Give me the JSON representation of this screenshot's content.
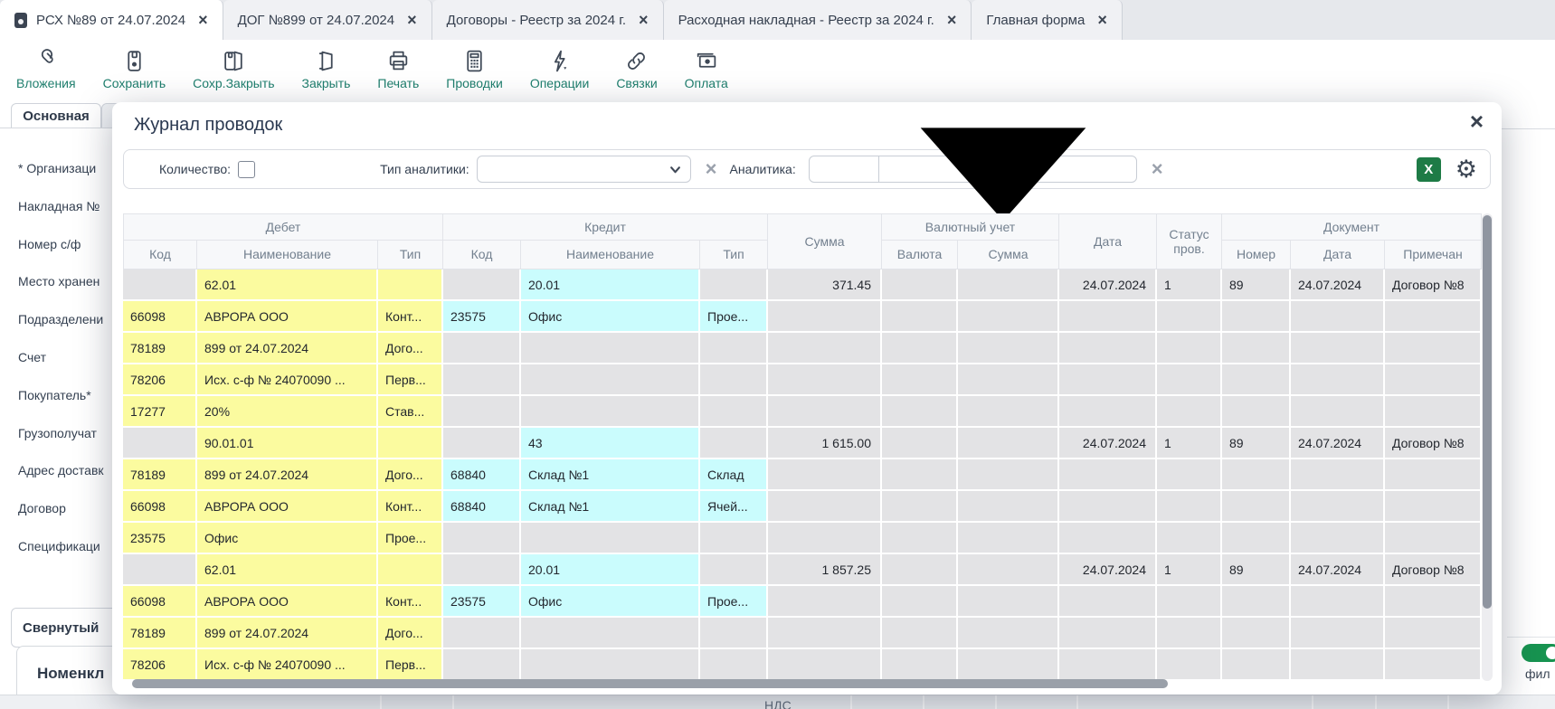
{
  "window": {
    "close_glyph": "×",
    "tabs": [
      {
        "label": "РСХ №89 от 24.07.2024",
        "active": true
      },
      {
        "label": "ДОГ №899 от 24.07.2024",
        "active": false
      },
      {
        "label": "Договоры - Реестр за 2024 г.",
        "active": false
      },
      {
        "label": "Расходная накладная - Реестр за 2024 г.",
        "active": false
      },
      {
        "label": "Главная форма",
        "active": false
      }
    ]
  },
  "toolbar": {
    "items": [
      {
        "label": "Вложения",
        "icon": "paperclip-icon"
      },
      {
        "label": "Сохранить",
        "icon": "save-icon"
      },
      {
        "label": "Сохр.Закрыть",
        "icon": "save-close-icon"
      },
      {
        "label": "Закрыть",
        "icon": "door-icon"
      },
      {
        "label": "Печать",
        "icon": "printer-icon"
      },
      {
        "label": "Проводки",
        "icon": "calculator-icon"
      },
      {
        "label": "Операции",
        "icon": "lightning-icon"
      },
      {
        "label": "Связки",
        "icon": "link-icon"
      },
      {
        "label": "Оплата",
        "icon": "banknote-icon"
      }
    ]
  },
  "form": {
    "active_tab": "Основная",
    "labels": [
      "* Организаци",
      "Накладная №",
      "Номер с/ф",
      "Место хранен",
      "Подразделени",
      "Счет",
      "Покупатель*",
      "Грузополучат",
      "Адрес доставк",
      "Договор",
      "Спецификаци"
    ],
    "collapsed_section": "Свернутый",
    "bottom_section": "Номенкл"
  },
  "modal": {
    "title": "Журнал проводок",
    "filters": {
      "quantity_label": "Количество:",
      "type_label": "Тип аналитики:",
      "analytics_label": "Аналитика:",
      "excel_glyph": "X",
      "gear_glyph": "⚙"
    },
    "table": {
      "groups": {
        "debit": "Дебет",
        "credit": "Кредит",
        "currency": "Валютный учет",
        "document": "Документ"
      },
      "cols": {
        "code": "Код",
        "name": "Наименование",
        "type": "Тип",
        "sum": "Сумма",
        "currency": "Валюта",
        "currency_sum": "Сумма",
        "date": "Дата",
        "status": "Статус пров.",
        "doc_number": "Номер",
        "doc_date": "Дата",
        "note": "Примечан"
      },
      "rows": [
        {
          "dn": "62.01",
          "cn": "20.01",
          "sum": "371.45",
          "date": "24.07.2024",
          "st": "1",
          "num": "89",
          "ddate": "24.07.2024",
          "note": "Договор №8"
        },
        {
          "dc": "66098",
          "dn": "АВРОРА ООО",
          "dt": "Конт...",
          "cc": "23575",
          "cn": "Офис",
          "ct": "Прое..."
        },
        {
          "dc": "78189",
          "dn": "899 от 24.07.2024",
          "dt": "Дого..."
        },
        {
          "dc": "78206",
          "dn": "Исх. с-ф № 24070090 ...",
          "dt": "Перв..."
        },
        {
          "dc": "17277",
          "dn": "20%",
          "dt": "Став..."
        },
        {
          "dn": "90.01.01",
          "cn": "43",
          "sum": "1 615.00",
          "date": "24.07.2024",
          "st": "1",
          "num": "89",
          "ddate": "24.07.2024",
          "note": "Договор №8"
        },
        {
          "dc": "78189",
          "dn": "899 от 24.07.2024",
          "dt": "Дого...",
          "cc": "68840",
          "cn": "Склад №1",
          "ct": "Склад"
        },
        {
          "dc": "66098",
          "dn": "АВРОРА ООО",
          "dt": "Конт...",
          "cc": "68840",
          "cn": "Склад №1",
          "ct": "Ячей..."
        },
        {
          "dc": "23575",
          "dn": "Офис",
          "dt": "Прое..."
        },
        {
          "dn": "62.01",
          "cn": "20.01",
          "sum": "1 857.25",
          "date": "24.07.2024",
          "st": "1",
          "num": "89",
          "ddate": "24.07.2024",
          "note": "Договор №8"
        },
        {
          "dc": "66098",
          "dn": "АВРОРА ООО",
          "dt": "Конт...",
          "cc": "23575",
          "cn": "Офис",
          "ct": "Прое..."
        },
        {
          "dc": "78189",
          "dn": "899 от 24.07.2024",
          "dt": "Дого..."
        },
        {
          "dc": "78206",
          "dn": "Исх. с-ф № 24070090 ...",
          "dt": "Перв..."
        }
      ]
    }
  },
  "background": {
    "bottom_col_header": "НДС",
    "filter_toggle_label": "фил"
  }
}
